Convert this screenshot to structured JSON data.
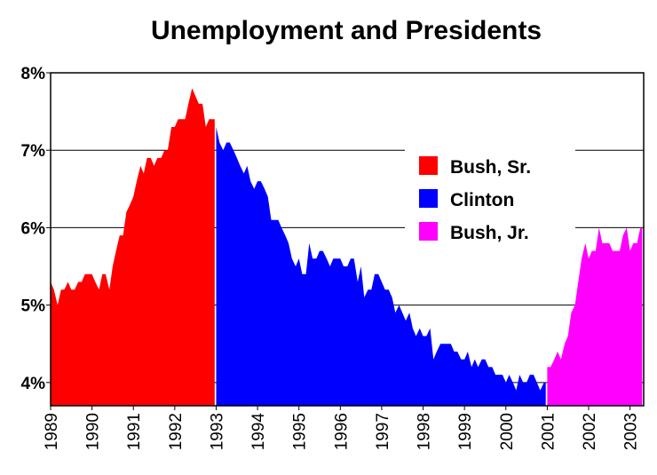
{
  "chart_data": {
    "type": "area",
    "title": "Unemployment and Presidents",
    "xlabel": "",
    "ylabel": "",
    "xlim": [
      1989,
      2003.33
    ],
    "ylim": [
      3.7,
      8.0
    ],
    "y_ticks": [
      {
        "value": 4,
        "label": "4%"
      },
      {
        "value": 5,
        "label": "5%"
      },
      {
        "value": 6,
        "label": "6%"
      },
      {
        "value": 7,
        "label": "7%"
      },
      {
        "value": 8,
        "label": "8%"
      }
    ],
    "x_ticks": [
      "1989",
      "1990",
      "1991",
      "1992",
      "1993",
      "1994",
      "1995",
      "1996",
      "1997",
      "1998",
      "1999",
      "2000",
      "2001",
      "2002",
      "2003"
    ],
    "grid": "horizontal",
    "legend_position": "right",
    "series": [
      {
        "name": "Bush, Sr.",
        "color": "#ff0000",
        "x": [
          1989.0,
          1989.08,
          1989.17,
          1989.25,
          1989.33,
          1989.42,
          1989.5,
          1989.58,
          1989.67,
          1989.75,
          1989.83,
          1989.92,
          1990.0,
          1990.08,
          1990.17,
          1990.25,
          1990.33,
          1990.42,
          1990.5,
          1990.58,
          1990.67,
          1990.75,
          1990.83,
          1990.92,
          1991.0,
          1991.08,
          1991.17,
          1991.25,
          1991.33,
          1991.42,
          1991.5,
          1991.58,
          1991.67,
          1991.75,
          1991.83,
          1991.92,
          1992.0,
          1992.08,
          1992.17,
          1992.25,
          1992.33,
          1992.42,
          1992.5,
          1992.58,
          1992.67,
          1992.75,
          1992.83,
          1992.92
        ],
        "values": [
          5.3,
          5.2,
          5.0,
          5.2,
          5.2,
          5.3,
          5.2,
          5.2,
          5.3,
          5.3,
          5.4,
          5.4,
          5.4,
          5.3,
          5.2,
          5.4,
          5.4,
          5.2,
          5.5,
          5.7,
          5.9,
          5.9,
          6.2,
          6.3,
          6.4,
          6.6,
          6.8,
          6.7,
          6.9,
          6.9,
          6.8,
          6.9,
          6.9,
          7.0,
          7.0,
          7.3,
          7.3,
          7.4,
          7.4,
          7.4,
          7.6,
          7.8,
          7.7,
          7.6,
          7.6,
          7.3,
          7.4,
          7.4
        ]
      },
      {
        "name": "Clinton",
        "color": "#0000ff",
        "x": [
          1993.0,
          1993.08,
          1993.17,
          1993.25,
          1993.33,
          1993.42,
          1993.5,
          1993.58,
          1993.67,
          1993.75,
          1993.83,
          1993.92,
          1994.0,
          1994.08,
          1994.17,
          1994.25,
          1994.33,
          1994.42,
          1994.5,
          1994.58,
          1994.67,
          1994.75,
          1994.83,
          1994.92,
          1995.0,
          1995.08,
          1995.17,
          1995.25,
          1995.33,
          1995.42,
          1995.5,
          1995.58,
          1995.67,
          1995.75,
          1995.83,
          1995.92,
          1996.0,
          1996.08,
          1996.17,
          1996.25,
          1996.33,
          1996.42,
          1996.5,
          1996.58,
          1996.67,
          1996.75,
          1996.83,
          1996.92,
          1997.0,
          1997.08,
          1997.17,
          1997.25,
          1997.33,
          1997.42,
          1997.5,
          1997.58,
          1997.67,
          1997.75,
          1997.83,
          1997.92,
          1998.0,
          1998.08,
          1998.17,
          1998.25,
          1998.33,
          1998.42,
          1998.5,
          1998.58,
          1998.67,
          1998.75,
          1998.83,
          1998.92,
          1999.0,
          1999.08,
          1999.17,
          1999.25,
          1999.33,
          1999.42,
          1999.5,
          1999.58,
          1999.67,
          1999.75,
          1999.83,
          1999.92,
          2000.0,
          2000.08,
          2000.17,
          2000.25,
          2000.33,
          2000.42,
          2000.5,
          2000.58,
          2000.67,
          2000.75,
          2000.83,
          2000.92
        ],
        "values": [
          7.3,
          7.1,
          7.0,
          7.1,
          7.1,
          7.0,
          6.9,
          6.8,
          6.7,
          6.8,
          6.6,
          6.5,
          6.6,
          6.6,
          6.5,
          6.4,
          6.1,
          6.1,
          6.1,
          6.0,
          5.9,
          5.8,
          5.6,
          5.5,
          5.6,
          5.4,
          5.4,
          5.8,
          5.6,
          5.6,
          5.7,
          5.7,
          5.6,
          5.5,
          5.6,
          5.6,
          5.6,
          5.5,
          5.5,
          5.6,
          5.6,
          5.3,
          5.5,
          5.1,
          5.2,
          5.2,
          5.4,
          5.4,
          5.3,
          5.2,
          5.2,
          5.1,
          4.9,
          5.0,
          4.9,
          4.8,
          4.9,
          4.7,
          4.6,
          4.7,
          4.6,
          4.6,
          4.7,
          4.3,
          4.4,
          4.5,
          4.5,
          4.5,
          4.5,
          4.4,
          4.4,
          4.3,
          4.3,
          4.4,
          4.2,
          4.3,
          4.2,
          4.3,
          4.3,
          4.2,
          4.2,
          4.1,
          4.1,
          4.1,
          4.0,
          4.1,
          4.0,
          3.9,
          4.1,
          4.0,
          4.0,
          4.1,
          4.1,
          4.0,
          3.9,
          4.0
        ]
      },
      {
        "name": "Bush, Jr.",
        "color": "#ff00ff",
        "x": [
          2001.0,
          2001.08,
          2001.17,
          2001.25,
          2001.33,
          2001.42,
          2001.5,
          2001.58,
          2001.67,
          2001.75,
          2001.83,
          2001.92,
          2002.0,
          2002.08,
          2002.17,
          2002.25,
          2002.33,
          2002.42,
          2002.5,
          2002.58,
          2002.67,
          2002.75,
          2002.83,
          2002.92,
          2003.0,
          2003.08,
          2003.17,
          2003.25
        ],
        "values": [
          4.2,
          4.2,
          4.3,
          4.4,
          4.3,
          4.5,
          4.6,
          4.9,
          5.0,
          5.3,
          5.6,
          5.8,
          5.6,
          5.7,
          5.7,
          6.0,
          5.8,
          5.8,
          5.8,
          5.7,
          5.7,
          5.7,
          5.9,
          6.0,
          5.7,
          5.8,
          5.8,
          6.0
        ]
      }
    ]
  }
}
